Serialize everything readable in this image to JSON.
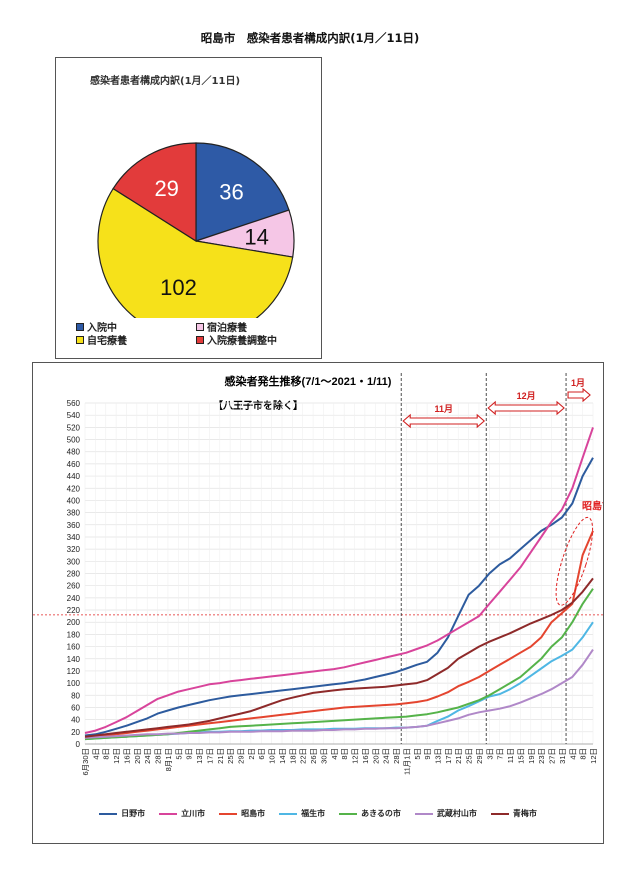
{
  "page": {
    "title": "昭島市　感染者患者構成内訳(1月／11日)"
  },
  "chart_data": [
    {
      "type": "pie",
      "title": "感染者患者構成内訳(1月／11日)",
      "slices": [
        {
          "label": "入院中",
          "value": 36,
          "color": "#2e5aa6"
        },
        {
          "label": "宿泊療養",
          "value": 14,
          "color": "#f5c6e6"
        },
        {
          "label": "自宅療養",
          "value": 102,
          "color": "#f6e11a"
        },
        {
          "label": "入院療養調整中",
          "value": 29,
          "color": "#e23b3b"
        }
      ]
    },
    {
      "type": "line",
      "title": "感染者発生推移(7/1～2021・1/11)",
      "subtitle": "【八王子市を除く】",
      "ylim": [
        0,
        560
      ],
      "yticks": [
        0,
        20,
        40,
        60,
        80,
        100,
        120,
        140,
        160,
        180,
        200,
        220,
        240,
        260,
        280,
        300,
        320,
        340,
        360,
        380,
        400,
        420,
        440,
        460,
        480,
        500,
        520,
        540,
        560
      ],
      "x_tick_labels": [
        "6月30日",
        "4日",
        "8日",
        "12日",
        "16日",
        "20日",
        "24日",
        "28日",
        "8月1日",
        "5日",
        "9日",
        "13日",
        "17日",
        "21日",
        "25日",
        "29日",
        "2日",
        "6日",
        "10日",
        "14日",
        "18日",
        "22日",
        "26日",
        "30日",
        "4日",
        "8日",
        "12日",
        "16日",
        "20日",
        "24日",
        "28日",
        "11月1日",
        "5日",
        "9日",
        "13日",
        "17日",
        "21日",
        "25日",
        "29日",
        "3日",
        "7日",
        "11日",
        "15日",
        "19日",
        "23日",
        "27日",
        "31日",
        "4日",
        "8日",
        "12日"
      ],
      "reference_line": 212,
      "month_markers": [
        {
          "label": "11月",
          "at": "11月1日"
        },
        {
          "label": "12月",
          "at": "12月1日"
        },
        {
          "label": "1月",
          "at": "1月1日"
        }
      ],
      "annotation": "昭島市",
      "series": [
        {
          "name": "日野市",
          "color": "#2d5b9e",
          "values": [
            14,
            16,
            20,
            25,
            30,
            36,
            42,
            50,
            55,
            60,
            64,
            68,
            72,
            75,
            78,
            80,
            82,
            84,
            86,
            88,
            90,
            92,
            94,
            96,
            98,
            100,
            103,
            106,
            110,
            114,
            118,
            124,
            130,
            135,
            150,
            175,
            210,
            245,
            260,
            280,
            295,
            305,
            320,
            335,
            350,
            360,
            372,
            395,
            440,
            470
          ]
        },
        {
          "name": "立川市",
          "color": "#d8449b",
          "values": [
            18,
            22,
            28,
            36,
            44,
            54,
            64,
            74,
            80,
            86,
            90,
            94,
            98,
            100,
            103,
            105,
            107,
            109,
            111,
            113,
            115,
            117,
            119,
            121,
            123,
            126,
            130,
            134,
            138,
            142,
            146,
            150,
            156,
            162,
            170,
            180,
            190,
            200,
            210,
            230,
            250,
            270,
            290,
            315,
            340,
            365,
            385,
            420,
            470,
            520
          ]
        },
        {
          "name": "昭島市",
          "color": "#e4452f",
          "values": [
            10,
            12,
            14,
            16,
            18,
            20,
            22,
            24,
            26,
            28,
            30,
            32,
            34,
            36,
            38,
            40,
            42,
            44,
            46,
            48,
            50,
            52,
            54,
            56,
            58,
            60,
            61,
            62,
            63,
            64,
            65,
            67,
            69,
            72,
            78,
            85,
            95,
            102,
            110,
            120,
            130,
            140,
            150,
            160,
            175,
            200,
            215,
            230,
            310,
            350
          ]
        },
        {
          "name": "福生市",
          "color": "#4fb7e4",
          "values": [
            8,
            9,
            10,
            11,
            12,
            13,
            14,
            15,
            16,
            17,
            18,
            19,
            20,
            20,
            21,
            21,
            22,
            22,
            23,
            23,
            23,
            24,
            24,
            24,
            25,
            25,
            25,
            26,
            26,
            26,
            27,
            27,
            28,
            30,
            38,
            45,
            55,
            62,
            70,
            78,
            82,
            90,
            100,
            112,
            124,
            136,
            145,
            155,
            175,
            200
          ]
        },
        {
          "name": "あきるの市",
          "color": "#55b34a",
          "values": [
            8,
            9,
            10,
            11,
            12,
            13,
            14,
            15,
            16,
            18,
            20,
            22,
            24,
            26,
            28,
            29,
            30,
            31,
            32,
            33,
            34,
            35,
            36,
            37,
            38,
            39,
            40,
            41,
            42,
            43,
            44,
            45,
            47,
            49,
            52,
            56,
            60,
            66,
            72,
            80,
            90,
            100,
            110,
            125,
            140,
            160,
            175,
            200,
            230,
            255
          ]
        },
        {
          "name": "武蔵村山市",
          "color": "#b088c8",
          "values": [
            10,
            11,
            12,
            13,
            14,
            15,
            16,
            16,
            17,
            17,
            18,
            18,
            19,
            19,
            20,
            20,
            20,
            21,
            21,
            21,
            22,
            22,
            22,
            23,
            23,
            24,
            24,
            25,
            25,
            26,
            26,
            27,
            28,
            30,
            34,
            38,
            42,
            48,
            52,
            55,
            58,
            62,
            68,
            75,
            82,
            90,
            100,
            110,
            130,
            155
          ]
        },
        {
          "name": "青梅市",
          "color": "#8e2a2a",
          "values": [
            12,
            14,
            16,
            18,
            20,
            22,
            24,
            26,
            28,
            30,
            32,
            35,
            38,
            42,
            46,
            50,
            54,
            60,
            66,
            72,
            76,
            80,
            84,
            86,
            88,
            90,
            91,
            92,
            93,
            94,
            96,
            98,
            100,
            105,
            115,
            125,
            140,
            150,
            160,
            168,
            175,
            182,
            190,
            198,
            205,
            212,
            220,
            232,
            250,
            272
          ]
        }
      ]
    }
  ]
}
